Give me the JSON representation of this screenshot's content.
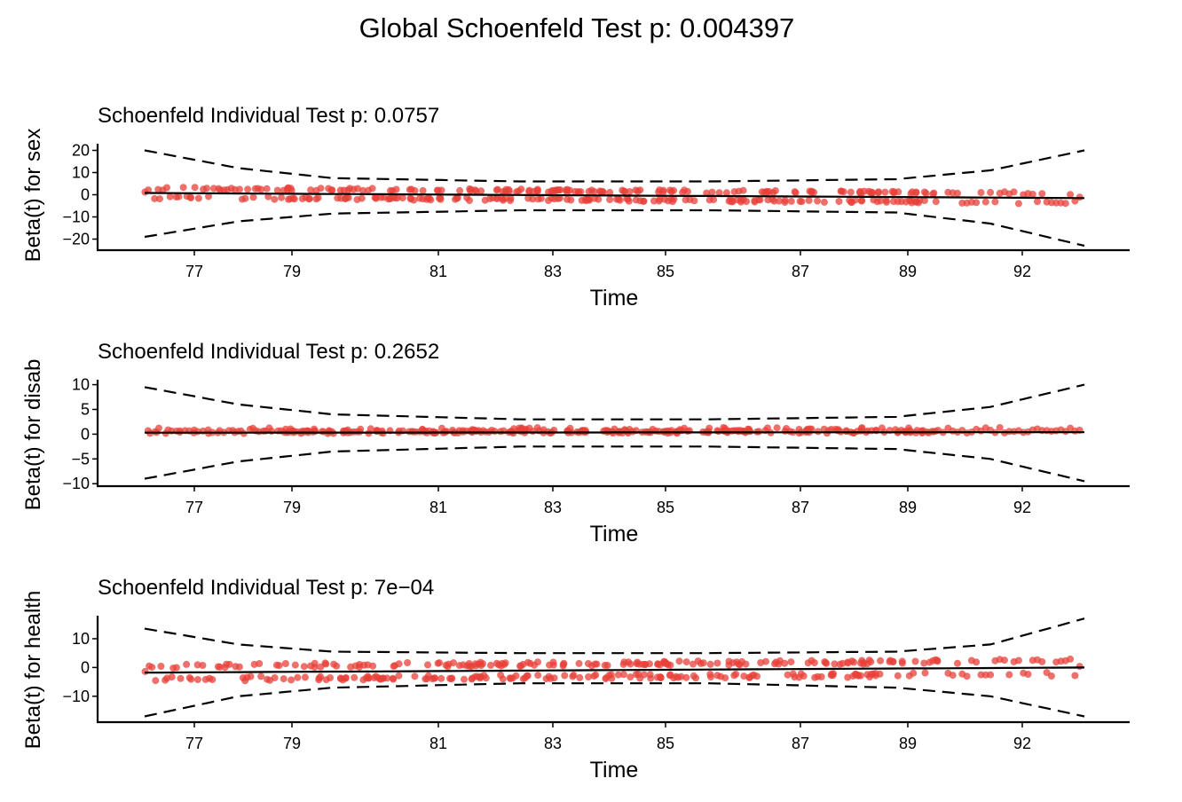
{
  "global_title": "Global Schoenfeld Test p: 0.004397",
  "colors": {
    "points": "#e8403a",
    "lines": "#000000"
  },
  "chart_data": [
    {
      "type": "scatter",
      "title": "Schoenfeld Individual Test p: 0.0757",
      "xlabel": "Time",
      "ylabel": "Beta(t) for sex",
      "x_ticks": [
        "77",
        "79",
        "81",
        "83",
        "85",
        "87",
        "89",
        "92"
      ],
      "x_range": [
        0,
        1
      ],
      "y_ticks": [
        20,
        10,
        0,
        -10,
        -20
      ],
      "ylim": [
        -25,
        23
      ],
      "points_note_shown": false,
      "fit_line": [
        [
          0,
          0.8
        ],
        [
          1,
          -1.5
        ]
      ],
      "upper_band": [
        [
          0,
          20
        ],
        [
          0.1,
          12
        ],
        [
          0.2,
          7.5
        ],
        [
          0.4,
          6
        ],
        [
          0.6,
          6
        ],
        [
          0.8,
          7
        ],
        [
          0.9,
          11
        ],
        [
          1,
          20
        ]
      ],
      "lower_band": [
        [
          0,
          -19
        ],
        [
          0.1,
          -12
        ],
        [
          0.2,
          -8.5
        ],
        [
          0.4,
          -7
        ],
        [
          0.6,
          -7
        ],
        [
          0.8,
          -8
        ],
        [
          0.9,
          -13
        ],
        [
          1,
          -23
        ]
      ],
      "spread": 2.2,
      "offset_mode": "mixed"
    },
    {
      "type": "scatter",
      "title": "Schoenfeld Individual Test p: 0.2652",
      "xlabel": "Time",
      "ylabel": "Beta(t) for disab",
      "x_ticks": [
        "77",
        "79",
        "81",
        "83",
        "85",
        "87",
        "89",
        "92"
      ],
      "x_range": [
        0,
        1
      ],
      "y_ticks": [
        10,
        5,
        0,
        -5,
        -10
      ],
      "ylim": [
        -10.5,
        11
      ],
      "fit_line": [
        [
          0,
          0.3
        ],
        [
          1,
          0.4
        ]
      ],
      "upper_band": [
        [
          0,
          9.5
        ],
        [
          0.1,
          6
        ],
        [
          0.2,
          4
        ],
        [
          0.4,
          3
        ],
        [
          0.6,
          3
        ],
        [
          0.8,
          3.5
        ],
        [
          0.9,
          5.5
        ],
        [
          1,
          10
        ]
      ],
      "lower_band": [
        [
          0,
          -9
        ],
        [
          0.1,
          -5.5
        ],
        [
          0.2,
          -3.5
        ],
        [
          0.4,
          -2.5
        ],
        [
          0.6,
          -2.5
        ],
        [
          0.8,
          -3
        ],
        [
          0.9,
          -5
        ],
        [
          1,
          -9.5
        ]
      ],
      "spread": 1.2,
      "offset_mode": "positive"
    },
    {
      "type": "scatter",
      "title": "Schoenfeld Individual Test p: 7e−04",
      "xlabel": "Time",
      "ylabel": "Beta(t) for health",
      "x_ticks": [
        "77",
        "79",
        "81",
        "83",
        "85",
        "87",
        "89",
        "92"
      ],
      "x_range": [
        0,
        1
      ],
      "y_ticks": [
        10,
        0,
        -10
      ],
      "ylim": [
        -19,
        18
      ],
      "fit_line": [
        [
          0,
          -1.8
        ],
        [
          1,
          0
        ]
      ],
      "upper_band": [
        [
          0,
          13.5
        ],
        [
          0.1,
          8
        ],
        [
          0.2,
          5.5
        ],
        [
          0.4,
          5
        ],
        [
          0.6,
          5
        ],
        [
          0.8,
          5.5
        ],
        [
          0.9,
          8
        ],
        [
          1,
          17
        ]
      ],
      "lower_band": [
        [
          0,
          -17
        ],
        [
          0.1,
          -10
        ],
        [
          0.2,
          -7
        ],
        [
          0.4,
          -5.5
        ],
        [
          0.6,
          -5.5
        ],
        [
          0.8,
          -7
        ],
        [
          0.9,
          -10
        ],
        [
          1,
          -17
        ]
      ],
      "spread": 2.5,
      "offset_mode": "mixed"
    }
  ]
}
